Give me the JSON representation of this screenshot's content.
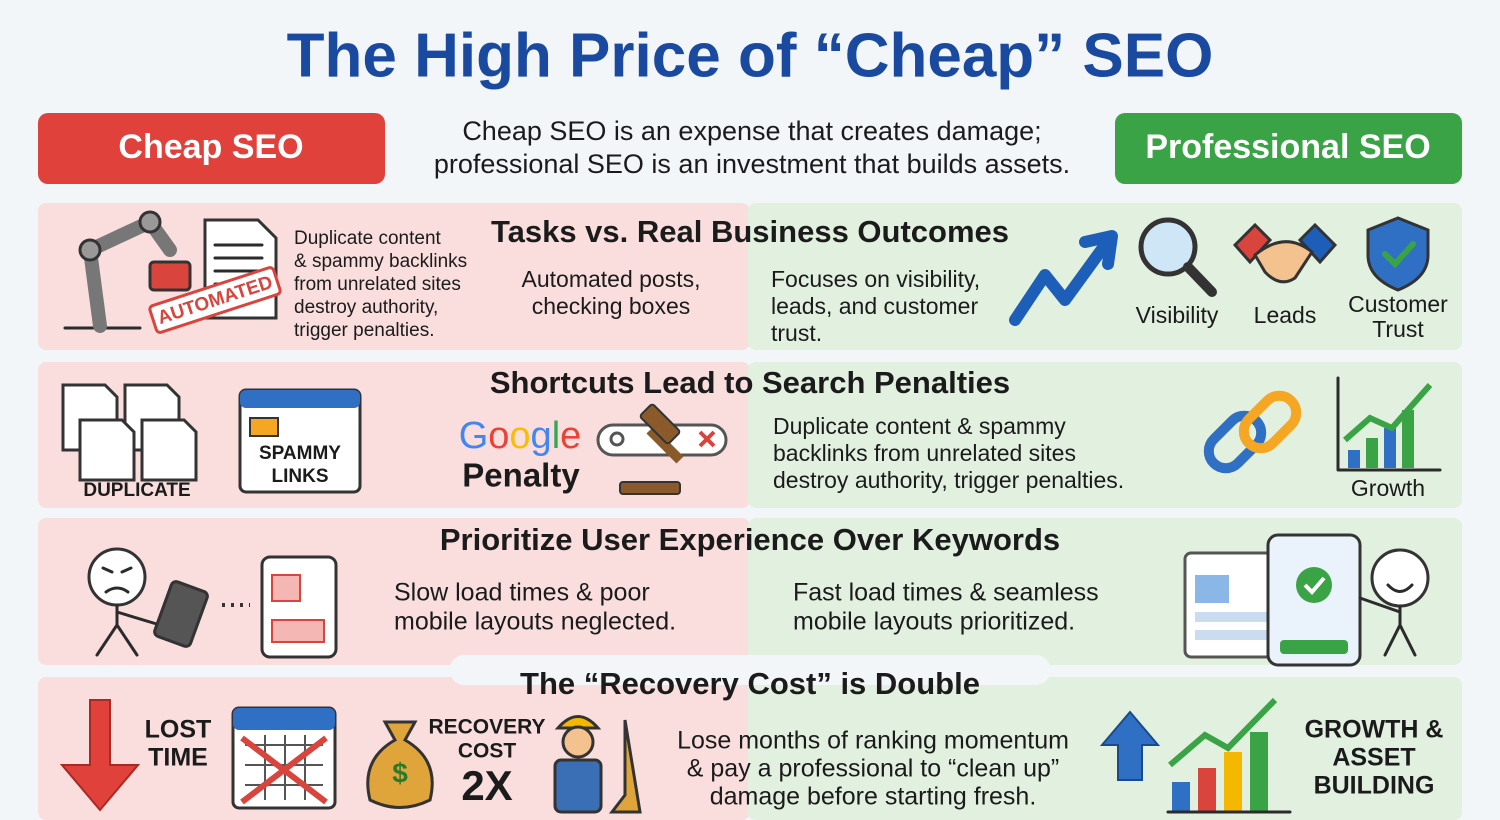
{
  "title": "The High Price of “Cheap” SEO",
  "cheap_badge": "Cheap SEO",
  "pro_badge": "Professional SEO",
  "tagline": [
    "Cheap SEO is an expense that creates damage;",
    "professional SEO is an investment that builds assets."
  ],
  "rows": [
    {
      "heading": "Tasks vs. Real Business Outcomes",
      "stamp": "AUTOMATED",
      "cheap_text": [
        "Duplicate content",
        "& spammy backlinks",
        "from unrelated sites",
        "destroy authority,",
        "trigger penalties."
      ],
      "cheap_caption": [
        "Automated posts,",
        "checking boxes"
      ],
      "pro_text": [
        "Focuses on visibility,",
        "leads, and customer",
        "trust."
      ],
      "icon_labels": [
        "Visibility",
        "Leads"
      ],
      "trust_label": [
        "Customer",
        "Trust"
      ]
    },
    {
      "heading": "Shortcuts Lead to Search Penalties",
      "duplicate_label": "DUPLICATE",
      "spammy_label": [
        "SPAMMY",
        "LINKS"
      ],
      "google": "Google",
      "penalty": "Penalty",
      "pro_text": [
        "Duplicate content & spammy",
        "backlinks from unrelated sites",
        "destroy authority, trigger penalties."
      ],
      "growth_label": "Growth"
    },
    {
      "heading": "Prioritize User Experience Over Keywords",
      "cheap_text": [
        "Slow load times & poor",
        "mobile layouts neglected."
      ],
      "pro_text": [
        "Fast load times & seamless",
        "mobile layouts prioritized."
      ]
    },
    {
      "heading": "The “Recovery Cost” is Double",
      "lost_time": [
        "LOST",
        "TIME"
      ],
      "recovery_cost": [
        "RECOVERY",
        "COST"
      ],
      "multiplier": "2X",
      "text": [
        "Lose months of ranking momentum",
        "& pay a professional to “clean up”",
        "damage before starting fresh."
      ],
      "growth_label": [
        "GROWTH &",
        "ASSET",
        "BUILDING"
      ]
    }
  ]
}
